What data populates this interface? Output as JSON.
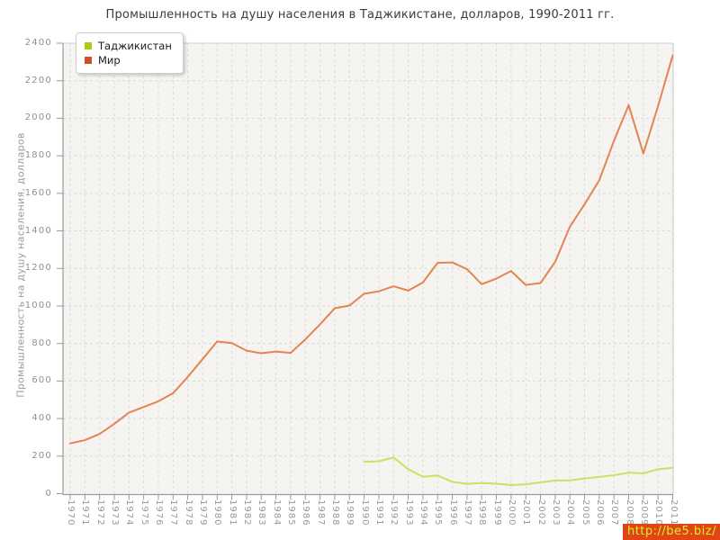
{
  "page": {
    "title": "Промышленность на душу населения в Таджикистане, долларов, 1990-2011 гг."
  },
  "legend": {
    "items": [
      {
        "label": "Таджикистан",
        "color": "#aacc11"
      },
      {
        "label": "Мир",
        "color": "#cc5122"
      }
    ]
  },
  "watermark": {
    "text": "http://be5.biz/",
    "bg": "#e04613",
    "fg": "#dcec2f"
  },
  "chart_data": {
    "type": "line",
    "title": "Промышленность на душу населения в Таджикистане, долларов, 1990-2011 гг.",
    "xlabel": "",
    "ylabel": "Промышленность на душу населения, долларов",
    "ylim": [
      0,
      2400
    ],
    "ytick_step": 200,
    "grid": true,
    "legend_position": "top-left",
    "x": [
      1970,
      1971,
      1972,
      1973,
      1974,
      1975,
      1976,
      1977,
      1978,
      1979,
      1980,
      1981,
      1982,
      1983,
      1984,
      1985,
      1986,
      1987,
      1988,
      1989,
      1990,
      1991,
      1992,
      1993,
      1994,
      1995,
      1996,
      1997,
      1998,
      1999,
      2000,
      2001,
      2002,
      2003,
      2004,
      2005,
      2006,
      2007,
      2008,
      2009,
      2010,
      2011
    ],
    "series": [
      {
        "name": "Таджикистан",
        "legend_color": "#aacc11",
        "line_color": "#cbe064",
        "values": [
          null,
          null,
          null,
          null,
          null,
          null,
          null,
          null,
          null,
          null,
          null,
          null,
          null,
          null,
          null,
          null,
          null,
          null,
          null,
          null,
          170,
          172,
          193,
          130,
          90,
          97,
          63,
          52,
          57,
          53,
          46,
          50,
          60,
          70,
          71,
          81,
          89,
          98,
          112,
          108,
          130,
          138
        ]
      },
      {
        "name": "Мир",
        "legend_color": "#cc5122",
        "line_color": "#e58452",
        "values": [
          268,
          285,
          318,
          372,
          432,
          462,
          492,
          535,
          622,
          716,
          811,
          802,
          762,
          748,
          757,
          750,
          822,
          902,
          988,
          1002,
          1065,
          1078,
          1105,
          1082,
          1125,
          1230,
          1232,
          1196,
          1116,
          1146,
          1186,
          1112,
          1122,
          1235,
          1422,
          1542,
          1670,
          1880,
          2070,
          1812,
          2065,
          2335
        ]
      }
    ]
  }
}
